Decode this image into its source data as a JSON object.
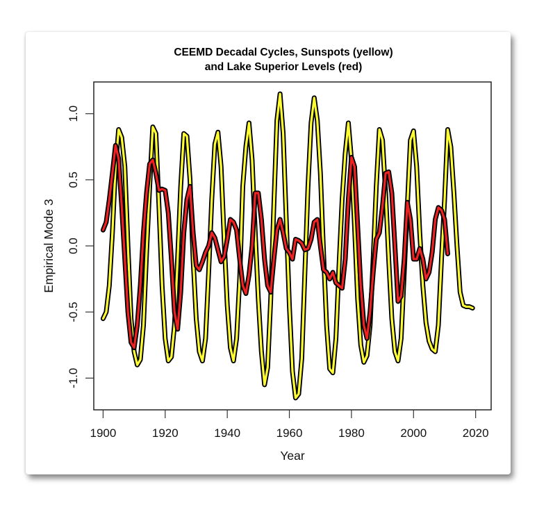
{
  "chart_data": {
    "type": "line",
    "title": "CEEMD Decadal Cycles, Sunspots (yellow)",
    "title_line2": "and Lake Superior Levels (red)",
    "xlabel": "Year",
    "ylabel": "Empirical Mode 3",
    "xlim": [
      1897,
      2025
    ],
    "ylim": [
      -1.24,
      1.24
    ],
    "grid": false,
    "legend": "none",
    "x_ticks": [
      1900,
      1920,
      1940,
      1960,
      1980,
      2000,
      2020
    ],
    "x_tick_labels": [
      "1900",
      "1920",
      "1940",
      "1960",
      "1980",
      "2000",
      "2020"
    ],
    "y_ticks": [
      -1.0,
      -0.5,
      0.0,
      0.5,
      1.0
    ],
    "y_tick_labels": [
      "-1.0",
      "-0.5",
      "0.0",
      "0.5",
      "1.0"
    ],
    "x_start": 1900,
    "series": [
      {
        "name": "Sunspots",
        "color": "#ffff33",
        "outline": "#000000",
        "values": [
          -0.55,
          -0.5,
          -0.3,
          0.1,
          0.6,
          0.88,
          0.82,
          0.6,
          0.0,
          -0.55,
          -0.8,
          -0.9,
          -0.86,
          -0.6,
          -0.05,
          0.45,
          0.9,
          0.85,
          0.3,
          -0.3,
          -0.7,
          -0.87,
          -0.84,
          -0.6,
          -0.1,
          0.45,
          0.85,
          0.83,
          0.5,
          -0.1,
          -0.55,
          -0.8,
          -0.87,
          -0.7,
          -0.2,
          0.35,
          0.77,
          0.86,
          0.6,
          0.05,
          -0.45,
          -0.77,
          -0.87,
          -0.7,
          -0.25,
          0.45,
          0.75,
          0.93,
          0.65,
          0.1,
          -0.4,
          -0.8,
          -1.05,
          -0.92,
          -0.4,
          0.3,
          0.95,
          1.15,
          0.85,
          0.2,
          -0.45,
          -0.95,
          -1.15,
          -1.12,
          -0.85,
          -0.2,
          0.45,
          0.93,
          1.12,
          0.95,
          0.55,
          -0.05,
          -0.6,
          -0.93,
          -0.96,
          -0.7,
          -0.15,
          0.35,
          0.7,
          0.93,
          0.65,
          0.15,
          -0.4,
          -0.75,
          -0.88,
          -0.83,
          -0.6,
          -0.1,
          0.45,
          0.88,
          0.8,
          0.4,
          -0.1,
          -0.55,
          -0.8,
          -0.87,
          -0.7,
          -0.2,
          0.3,
          0.8,
          0.87,
          0.6,
          0.1,
          -0.3,
          -0.58,
          -0.72,
          -0.78,
          -0.8,
          -0.6,
          -0.1,
          0.35,
          0.88,
          0.75,
          0.4,
          0.0,
          -0.35,
          -0.45,
          -0.46,
          -0.46,
          -0.47
        ]
      },
      {
        "name": "Lake Superior Levels",
        "color": "#ee2222",
        "outline": "#000000",
        "values": [
          0.12,
          0.18,
          0.35,
          0.55,
          0.76,
          0.66,
          0.3,
          -0.1,
          -0.5,
          -0.73,
          -0.77,
          -0.6,
          -0.3,
          0.1,
          0.4,
          0.62,
          0.65,
          0.55,
          0.42,
          0.43,
          0.42,
          0.25,
          -0.1,
          -0.5,
          -0.63,
          -0.35,
          0.1,
          0.35,
          0.45,
          0.1,
          -0.15,
          -0.18,
          -0.12,
          -0.05,
          0.0,
          0.1,
          0.06,
          -0.03,
          -0.12,
          -0.08,
          0.05,
          0.2,
          0.18,
          0.12,
          -0.1,
          -0.3,
          -0.36,
          -0.22,
          0.0,
          0.4,
          0.4,
          0.2,
          -0.1,
          -0.3,
          -0.35,
          -0.1,
          0.12,
          0.2,
          0.1,
          -0.02,
          -0.05,
          -0.1,
          0.05,
          0.04,
          0.02,
          -0.03,
          -0.02,
          0.05,
          0.18,
          0.2,
          0.0,
          -0.18,
          -0.2,
          -0.25,
          -0.2,
          -0.28,
          -0.3,
          -0.32,
          -0.1,
          0.35,
          0.67,
          0.6,
          0.15,
          -0.3,
          -0.6,
          -0.7,
          -0.5,
          -0.2,
          0.05,
          0.1,
          0.3,
          0.55,
          0.56,
          0.4,
          0.0,
          -0.42,
          -0.38,
          -0.1,
          0.33,
          0.2,
          -0.1,
          -0.1,
          -0.02,
          -0.1,
          -0.25,
          -0.2,
          -0.05,
          0.2,
          0.29,
          0.27,
          0.2,
          -0.06
        ]
      }
    ]
  }
}
